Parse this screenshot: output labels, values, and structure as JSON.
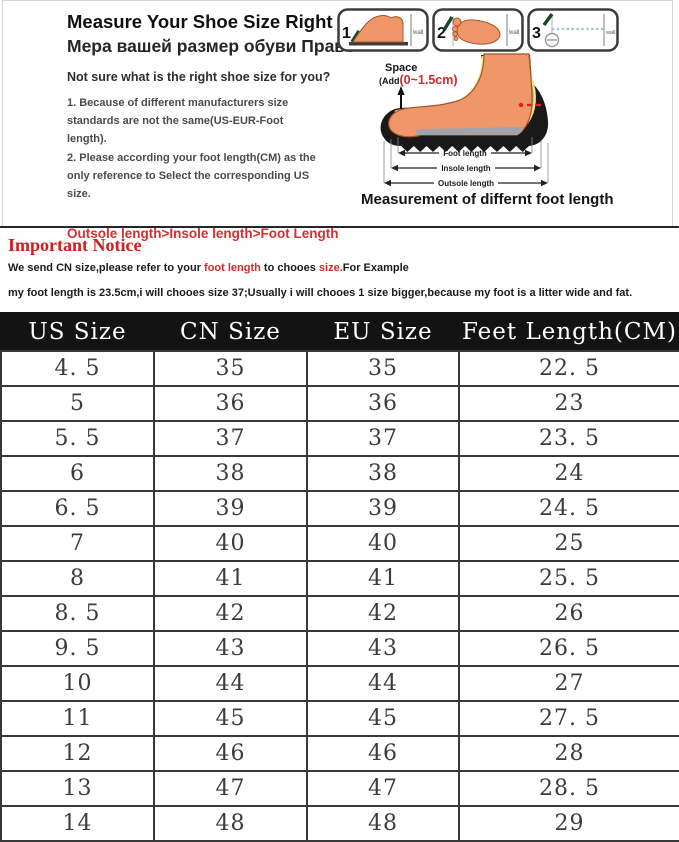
{
  "header": {
    "title": "Measure Your Shoe Size Right",
    "subtitle_ru": "Мера вашей размер обуви Право",
    "question": "Not sure what is the right shoe size for you?",
    "point1": "1.  Because of different manufacturers size standards are not the same(US-EUR-Foot length).",
    "point2": "2.  Please according your foot length(CM) as the only reference to Select the corresponding US size.",
    "warning": "Outsole length>Insole length>Foot Length"
  },
  "steps": {
    "numbers": [
      "1",
      "2",
      "3"
    ],
    "wall_label": "wall"
  },
  "diagram": {
    "space_label": "Space",
    "space_add_prefix": "(Add",
    "space_add_value": "(0~1.5cm)",
    "foot_length": "Foot length",
    "insole_length": "Insole length",
    "outsole_length": "Outsole length",
    "caption": "Measurement of differnt foot length"
  },
  "notice": {
    "title": "Important Notice",
    "line1_a": "We send CN size,please refer to your ",
    "line1_red1": "foot length",
    "line1_b": " to chooes ",
    "line1_red2": "size.",
    "line1_c": "For Example",
    "line2": "my foot length is 23.5cm,i will chooes size 37;Usually i will chooes 1 size bigger,because my foot is a litter wide and fat."
  },
  "table": {
    "columns": [
      "US Size",
      "CN Size",
      "EU Size",
      "Feet Length(CM)"
    ],
    "rows": [
      [
        "4. 5",
        "35",
        "35",
        "22. 5"
      ],
      [
        "5",
        "36",
        "36",
        "23"
      ],
      [
        "5. 5",
        "37",
        "37",
        "23. 5"
      ],
      [
        "6",
        "38",
        "38",
        "24"
      ],
      [
        "6. 5",
        "39",
        "39",
        "24. 5"
      ],
      [
        "7",
        "40",
        "40",
        "25"
      ],
      [
        "8",
        "41",
        "41",
        "25. 5"
      ],
      [
        "8. 5",
        "42",
        "42",
        "26"
      ],
      [
        "9. 5",
        "43",
        "43",
        "26. 5"
      ],
      [
        "10",
        "44",
        "44",
        "27"
      ],
      [
        "11",
        "45",
        "45",
        "27. 5"
      ],
      [
        "12",
        "46",
        "46",
        "28"
      ],
      [
        "13",
        "47",
        "47",
        "28. 5"
      ],
      [
        "14",
        "48",
        "48",
        "29"
      ]
    ]
  },
  "colors": {
    "accent_red": "#cc1f1f",
    "table_header_bg": "#131313",
    "foot_orange": "#ef9768",
    "marker_green": "#17472e"
  }
}
